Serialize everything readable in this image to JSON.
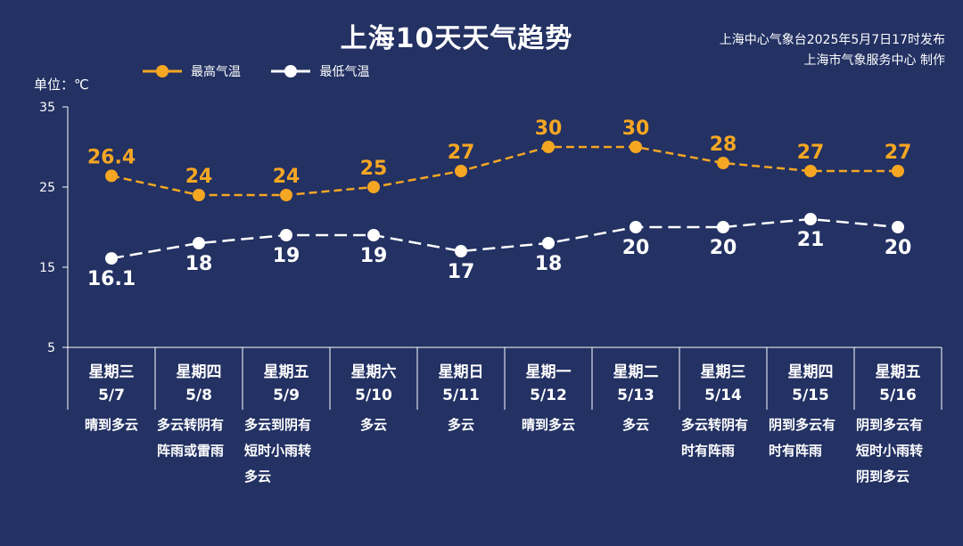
{
  "header": {
    "title": "上海10天天气趋势",
    "source_line1": "上海中心气象台2025年5月7日17时发布",
    "source_line2": "上海市气象服务中心 制作",
    "unit_label": "单位：℃"
  },
  "colors": {
    "background": "#233163",
    "high": "#f5a623",
    "low": "#ffffff",
    "axis": "#ffffff"
  },
  "days": [
    {
      "week": "星期三",
      "date": "5/7",
      "weather": "晴到多云"
    },
    {
      "week": "星期四",
      "date": "5/8",
      "weather": "多云转阴有\n阵雨或雷雨"
    },
    {
      "week": "星期五",
      "date": "5/9",
      "weather": "多云到阴有\n短时小雨转\n多云"
    },
    {
      "week": "星期六",
      "date": "5/10",
      "weather": "多云"
    },
    {
      "week": "星期日",
      "date": "5/11",
      "weather": "多云"
    },
    {
      "week": "星期一",
      "date": "5/12",
      "weather": "晴到多云"
    },
    {
      "week": "星期二",
      "date": "5/13",
      "weather": "多云"
    },
    {
      "week": "星期三",
      "date": "5/14",
      "weather": "多云转阴有\n时有阵雨"
    },
    {
      "week": "星期四",
      "date": "5/15",
      "weather": "阴到多云有\n时有阵雨"
    },
    {
      "week": "星期五",
      "date": "5/16",
      "weather": "阴到多云有\n短时小雨转\n阴到多云"
    }
  ],
  "chart_data": {
    "type": "line",
    "title": "上海10天天气趋势",
    "ylabel": "单位：℃",
    "ylim": [
      5,
      35
    ],
    "yticks": [
      5,
      15,
      25,
      35
    ],
    "categories": [
      "5/7",
      "5/8",
      "5/9",
      "5/10",
      "5/11",
      "5/12",
      "5/13",
      "5/14",
      "5/15",
      "5/16"
    ],
    "series": [
      {
        "name": "最高气温",
        "values": [
          26.4,
          24,
          24,
          25,
          27,
          30,
          30,
          28,
          27,
          27
        ],
        "labels": [
          "26.4",
          "24",
          "24",
          "25",
          "27",
          "30",
          "30",
          "28",
          "27",
          "27"
        ],
        "color": "#f5a623",
        "style": "dashed"
      },
      {
        "name": "最低气温",
        "values": [
          16.1,
          18,
          19,
          19,
          17,
          18,
          20,
          20,
          21,
          20
        ],
        "labels": [
          "16.1",
          "18",
          "19",
          "19",
          "17",
          "18",
          "20",
          "20",
          "21",
          "20"
        ],
        "color": "#ffffff",
        "style": "dashed"
      }
    ],
    "legend": "top-left",
    "grid": false
  }
}
